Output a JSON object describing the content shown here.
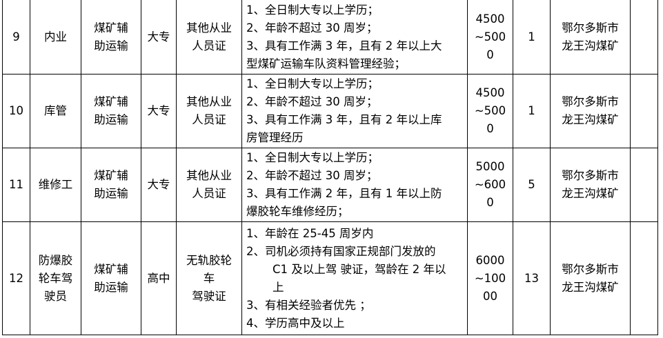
{
  "rows": [
    {
      "no": "9",
      "job": [
        "内业"
      ],
      "category": [
        "煤矿辅",
        "助运输"
      ],
      "education": [
        "大专"
      ],
      "certificate": [
        "其他从业",
        "人员证"
      ],
      "requirements": [
        {
          "t": "1、全日制大专以上学历；"
        },
        {
          "t": "2、年龄不超过 30 周岁；"
        },
        {
          "t": "3、具有工作满 3 年，且有 2 年以上大"
        },
        {
          "t": "型煤矿运输车队资料管理经验；"
        }
      ],
      "salary": [
        "4500",
        "~500",
        "0"
      ],
      "count": "1",
      "location": [
        "鄂尔多斯市",
        "龙王沟煤矿"
      ],
      "remark": ""
    },
    {
      "no": "10",
      "job": [
        "库管"
      ],
      "category": [
        "煤矿辅",
        "助运输"
      ],
      "education": [
        "大专"
      ],
      "certificate": [
        "其他从业",
        "人员证"
      ],
      "requirements": [
        {
          "t": "1、全日制大专以上学历；"
        },
        {
          "t": "2、年龄不超过 30 周岁；"
        },
        {
          "t": "3、具有工作满 3 年，且有 2 年以上库"
        },
        {
          "t": "房管理经历"
        }
      ],
      "salary": [
        "4500",
        "~500",
        "0"
      ],
      "count": "1",
      "location": [
        "鄂尔多斯市",
        "龙王沟煤矿"
      ],
      "remark": ""
    },
    {
      "no": "11",
      "job": [
        "维修工"
      ],
      "category": [
        "煤矿辅",
        "助运输"
      ],
      "education": [
        "大专"
      ],
      "certificate": [
        "其他从业",
        "人员证"
      ],
      "requirements": [
        {
          "t": "1、全日制大专以上学历；"
        },
        {
          "t": "2、年龄不超过 30 周岁；"
        },
        {
          "t": "3、具有工作满 2 年，且有 1 年以上防"
        },
        {
          "t": "爆胶轮车维修经历；"
        }
      ],
      "salary": [
        "5000",
        "~600",
        "0"
      ],
      "count": "5",
      "location": [
        "鄂尔多斯市",
        "龙王沟煤矿"
      ],
      "remark": ""
    },
    {
      "no": "12",
      "job": [
        "防爆胶",
        "轮车驾",
        "驶员"
      ],
      "category": [
        "煤矿辅",
        "助运输"
      ],
      "education": [
        "高中"
      ],
      "certificate": [
        "无轨胶轮",
        "车",
        "驾驶证"
      ],
      "requirements": [
        {
          "t": "1、年龄在 25-45 周岁内"
        },
        {
          "t": "2、司机必须持有国家正规部门发放的"
        },
        {
          "t": "C1 及以上驾 驶证，驾龄在 2 年以",
          "indent": true
        },
        {
          "t": "上",
          "indent": true
        },
        {
          "t": "3、有相关经验者优先 ；"
        },
        {
          "t": "4、学历高中及以上"
        }
      ],
      "salary": [
        "6000",
        "~100",
        "00"
      ],
      "count": "13",
      "location": [
        "鄂尔多斯市",
        "龙王沟煤矿"
      ],
      "remark": ""
    }
  ]
}
